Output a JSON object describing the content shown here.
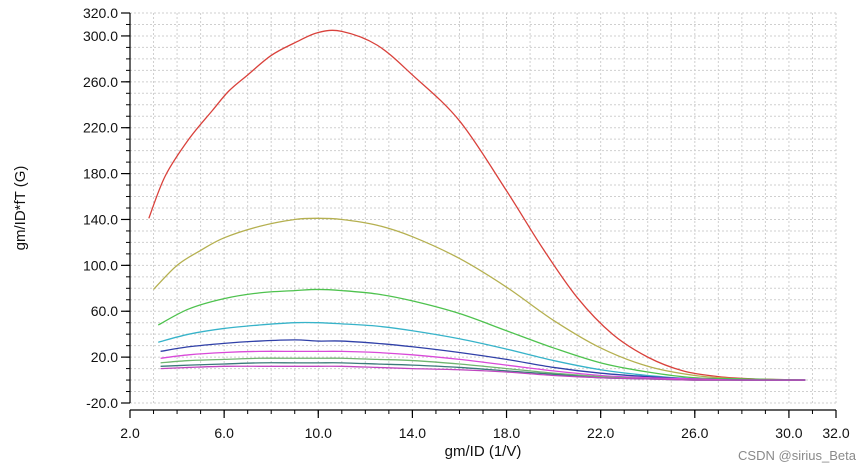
{
  "chart_data": {
    "type": "line",
    "title": "",
    "xlabel": "gm/ID (1/V)",
    "ylabel": "gm/ID*fT (G)",
    "xlim": [
      2.0,
      32.0
    ],
    "ylim": [
      -20.0,
      320.0
    ],
    "x_ticks": [
      2.0,
      6.0,
      10.0,
      14.0,
      18.0,
      22.0,
      26.0,
      30.0,
      32.0
    ],
    "x_tick_labels": [
      "2.0",
      "6.0",
      "10.0",
      "14.0",
      "18.0",
      "22.0",
      "26.0",
      "30.0",
      "32.0"
    ],
    "y_ticks": [
      -20.0,
      20.0,
      60.0,
      100.0,
      140.0,
      180.0,
      220.0,
      260.0,
      300.0,
      320.0
    ],
    "y_tick_labels": [
      "-20.0",
      "20.0",
      "60.0",
      "100.0",
      "140.0",
      "180.0",
      "220.0",
      "260.0",
      "300.0",
      "320.0"
    ],
    "grid": true,
    "legend": "none",
    "series": [
      {
        "color": "#d9413b",
        "x": [
          2.8,
          3.5,
          4.5,
          5.5,
          6.2,
          7.0,
          8.0,
          9.0,
          10.0,
          11.0,
          12.5,
          14.0,
          16.0,
          18.0,
          19.5,
          21.0,
          22.5,
          24.0,
          25.5,
          27.0,
          28.5,
          30.7
        ],
        "y": [
          141,
          178,
          210,
          235,
          252,
          266,
          283,
          294,
          303,
          304,
          292,
          266,
          226,
          165,
          116,
          72,
          40,
          20,
          8,
          3,
          1,
          0
        ]
      },
      {
        "color": "#b5b050",
        "x": [
          3.0,
          4.0,
          5.0,
          6.0,
          7.5,
          9.0,
          10.0,
          11.0,
          12.5,
          14.0,
          16.0,
          18.0,
          20.0,
          22.0,
          24.0,
          26.0,
          28.0,
          30.7
        ],
        "y": [
          79,
          100,
          113,
          124,
          134,
          140,
          141,
          140,
          135,
          125,
          106,
          81,
          52,
          28,
          12,
          4,
          1,
          0
        ]
      },
      {
        "color": "#4ec24e",
        "x": [
          3.2,
          4.5,
          6.0,
          7.5,
          9.0,
          10.0,
          11.0,
          12.5,
          14.0,
          16.0,
          18.0,
          20.0,
          22.0,
          24.0,
          26.0,
          28.0,
          30.7
        ],
        "y": [
          48,
          62,
          71,
          76,
          78,
          79,
          78,
          75,
          69,
          58,
          43,
          28,
          15,
          7,
          2,
          1,
          0
        ]
      },
      {
        "color": "#37b3c9",
        "x": [
          3.2,
          4.5,
          6.0,
          7.5,
          9.0,
          10.0,
          11.0,
          12.5,
          14.0,
          16.0,
          18.0,
          20.0,
          22.0,
          24.0,
          26.0,
          28.0,
          30.7
        ],
        "y": [
          33,
          40,
          45,
          48,
          50,
          50,
          49,
          47,
          43,
          36,
          27,
          17,
          9,
          4,
          1,
          0,
          0
        ]
      },
      {
        "color": "#3040a8",
        "x": [
          3.3,
          4.5,
          6.0,
          7.5,
          9.0,
          10.0,
          11.0,
          12.5,
          14.0,
          16.0,
          18.0,
          20.0,
          22.0,
          24.0,
          26.0,
          28.0,
          30.7
        ],
        "y": [
          25,
          29,
          32,
          34,
          35,
          34,
          34,
          32,
          29,
          24,
          18,
          11,
          6,
          3,
          1,
          0,
          0
        ]
      },
      {
        "color": "#d94ad9",
        "x": [
          3.3,
          4.5,
          6.0,
          7.5,
          9.0,
          10.0,
          11.0,
          12.5,
          14.0,
          16.0,
          18.0,
          20.0,
          22.0,
          24.0,
          26.0,
          28.0,
          30.7
        ],
        "y": [
          19,
          22,
          24,
          25,
          25,
          25,
          25,
          24,
          22,
          18,
          13,
          8,
          4,
          2,
          1,
          0,
          0
        ]
      },
      {
        "color": "#6fb56f",
        "x": [
          3.3,
          4.5,
          6.0,
          7.5,
          9.0,
          10.0,
          11.0,
          12.5,
          14.0,
          16.0,
          18.0,
          20.0,
          22.0,
          24.0,
          26.0,
          28.0,
          30.7
        ],
        "y": [
          15,
          17,
          18,
          19,
          19,
          19,
          19,
          18,
          17,
          14,
          10,
          6,
          3,
          1,
          0,
          0,
          0
        ]
      },
      {
        "color": "#3a7a7a",
        "x": [
          3.3,
          4.5,
          6.0,
          7.5,
          9.0,
          10.0,
          11.0,
          12.5,
          14.0,
          16.0,
          18.0,
          20.0,
          22.0,
          24.0,
          26.0,
          28.0,
          30.7
        ],
        "y": [
          12,
          13,
          14,
          15,
          15,
          15,
          15,
          14,
          13,
          11,
          8,
          5,
          2,
          1,
          0,
          0,
          0
        ]
      },
      {
        "color": "#c045c0",
        "x": [
          3.3,
          4.5,
          6.0,
          7.5,
          9.0,
          10.0,
          11.0,
          12.5,
          14.0,
          16.0,
          18.0,
          20.0,
          22.0,
          24.0,
          26.0,
          28.0,
          30.7
        ],
        "y": [
          10,
          11,
          12,
          12,
          12,
          12,
          12,
          11,
          10,
          9,
          7,
          4,
          2,
          1,
          0,
          0,
          0
        ]
      }
    ]
  },
  "watermark": "CSDN @sirius_Beta"
}
